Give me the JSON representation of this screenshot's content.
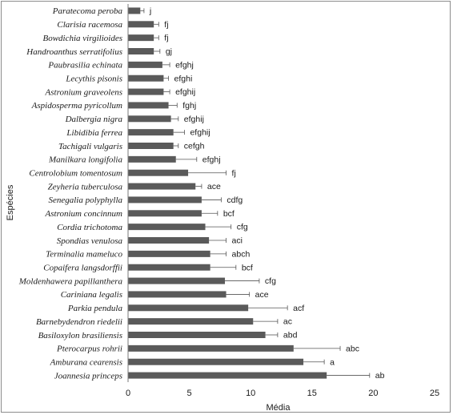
{
  "chart_data": {
    "type": "bar",
    "orientation": "horizontal",
    "xlabel": "Média",
    "ylabel": "Espécies",
    "xlim": [
      0,
      25
    ],
    "xticks": [
      "0",
      "5",
      "10",
      "15",
      "20",
      "25"
    ],
    "grid": false,
    "legend": "none",
    "bar_color": "#5a5a5a",
    "categories": [
      "Paratecoma peroba",
      "Clarisia racemosa",
      "Bowdichia virgilioides",
      "Handroanthus serratifolius",
      "Paubrasilia echinata",
      "Lecythis pisonis",
      "Astronium graveolens",
      "Aspidosperma pyricollum",
      "Dalbergia nigra",
      "Libidibia ferrea",
      "Tachigali vulgaris",
      "Manilkara longifolia",
      "Centrolobium tomentosum",
      "Zeyheria tuberculosa",
      "Senegalia polyphylla",
      "Astronium concinnum",
      "Cordia trichotoma",
      "Spondias venulosa",
      "Terminalia mameluco",
      "Copaifera langsdorffii",
      "Moldenhawera papillanthera",
      "Cariniana legalis",
      "Parkia pendula",
      "Barnebydendron riedelii",
      "Basiloxylon brasiliensis",
      "Pterocarpus rohrii",
      "Amburana cearensis",
      "Joannesia princeps"
    ],
    "values": [
      1.0,
      2.1,
      2.1,
      2.1,
      2.8,
      2.9,
      2.9,
      3.3,
      3.5,
      3.7,
      3.7,
      3.9,
      4.9,
      5.5,
      6.0,
      6.0,
      6.3,
      6.6,
      6.7,
      6.7,
      7.9,
      8.0,
      9.8,
      10.2,
      11.2,
      13.5,
      14.3,
      16.2
    ],
    "error": [
      0.3,
      0.4,
      0.4,
      0.5,
      0.6,
      0.4,
      0.5,
      0.7,
      0.6,
      0.9,
      0.4,
      1.7,
      3.1,
      0.5,
      1.6,
      1.3,
      2.1,
      1.4,
      1.3,
      2.1,
      2.8,
      1.9,
      3.2,
      2.0,
      1.0,
      3.8,
      1.7,
      3.5
    ],
    "significance_labels": [
      "j",
      "fj",
      "fj",
      "gj",
      "efghj",
      "efghi",
      "efghij",
      "fghj",
      "efghij",
      "efghij",
      "cefgh",
      "efghj",
      "fj",
      "ace",
      "cdfg",
      "bcf",
      "cfg",
      "aci",
      "abch",
      "bcf",
      "cfg",
      "ace",
      "acf",
      "ac",
      "abd",
      "abc",
      "a",
      "ab"
    ]
  }
}
